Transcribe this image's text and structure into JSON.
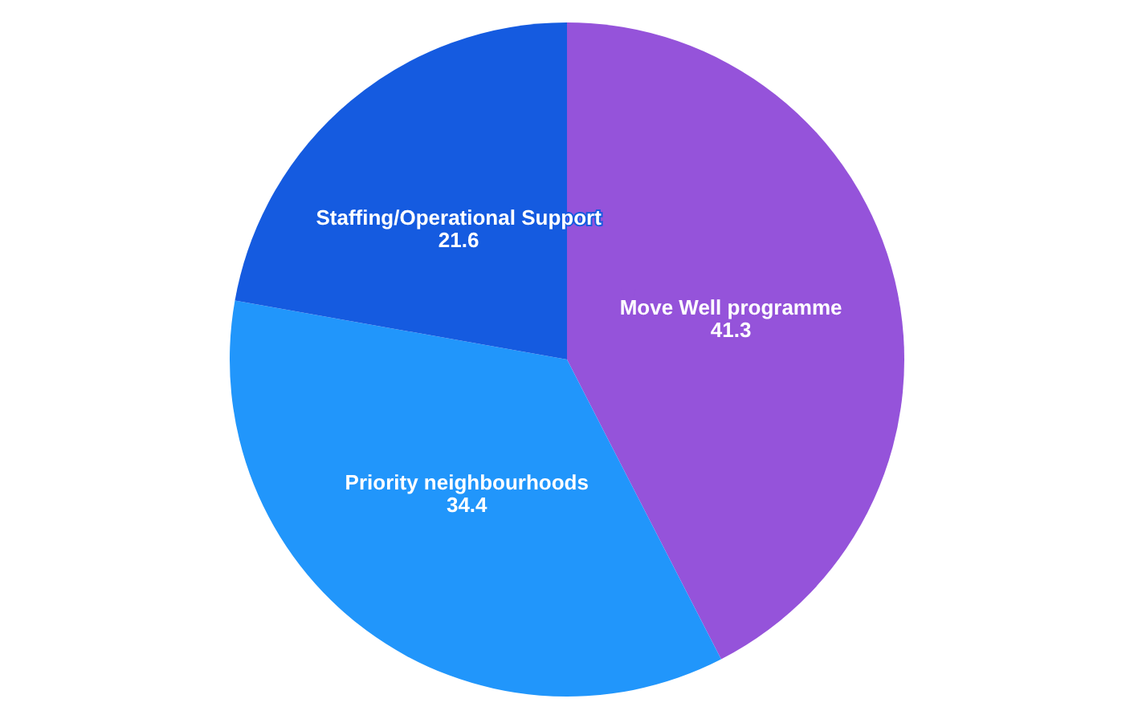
{
  "chart_data": {
    "type": "pie",
    "categories": [
      "Move Well programme",
      "Priority neighbourhoods",
      "Staffing/Operational Support"
    ],
    "values": [
      41.3,
      34.4,
      21.6
    ],
    "colors": [
      "#9553da",
      "#2196fb",
      "#155be0"
    ],
    "data_labels": true,
    "legend": false
  }
}
